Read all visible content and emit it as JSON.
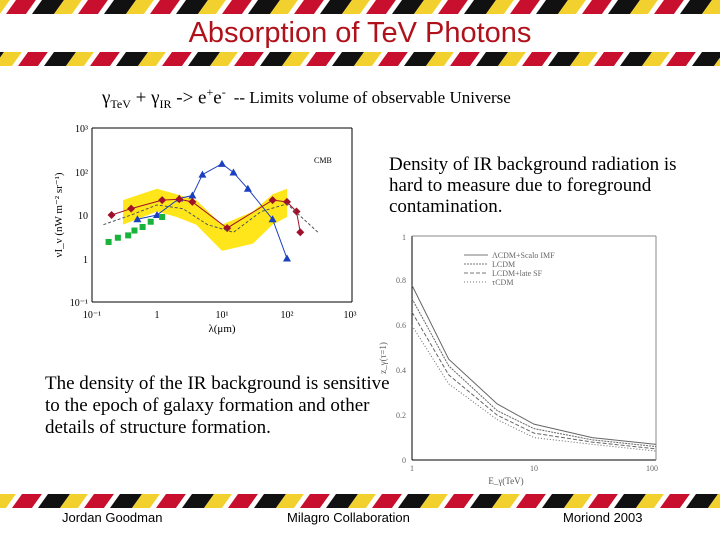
{
  "slide": {
    "title": "Absorption of TeV Photons",
    "reaction": {
      "g1": "γ",
      "s1": "TeV",
      "plus": " + γ",
      "s2": "IR",
      "arrow": " -> e",
      "p1": "+",
      "e2": "e",
      "p2": "-",
      "note": "-- Limits volume of observable Universe"
    },
    "density_note": "Density of IR background radiation is hard to measure due to foreground contamination.",
    "bottom_note": "The density of the IR background is sensitive to the epoch of galaxy formation and other details of structure formation.",
    "footer": {
      "left": "Jordan Goodman",
      "center": "Milagro Collaboration",
      "right": "Moriond 2003"
    }
  },
  "colors": {
    "title": "#b0121b",
    "band_black": "#111111",
    "band_yellow": "#f2d12e",
    "band_red": "#c8102e",
    "band_white": "#ffffff"
  },
  "chart_data": [
    {
      "type": "scatter",
      "title": "",
      "xlabel": "λ(μm)",
      "ylabel": "νI_ν (nW m⁻² sr⁻¹)",
      "x_scale": "log",
      "y_scale": "log",
      "xlim": [
        0.1,
        1000
      ],
      "ylim": [
        0.1,
        1000
      ],
      "x_ticks": [
        "10⁻¹",
        "1",
        "10¹",
        "10²",
        "10³"
      ],
      "y_ticks": [
        "10³",
        "10²",
        "10",
        "1",
        "10⁻¹"
      ],
      "annotations": [
        "CMB"
      ],
      "series": [
        {
          "name": "allowed band upper",
          "x": [
            0.3,
            1,
            2,
            4,
            10,
            30,
            60,
            100
          ],
          "values": [
            22,
            40,
            30,
            22,
            6,
            12,
            30,
            40
          ]
        },
        {
          "name": "allowed band lower",
          "x": [
            0.3,
            1,
            2,
            4,
            10,
            30,
            60,
            100
          ],
          "values": [
            6,
            12,
            9,
            6,
            1.5,
            2.2,
            6,
            9
          ]
        },
        {
          "name": "upper limits (blue)",
          "x": [
            0.5,
            1,
            2.2,
            3.5,
            5,
            10,
            15,
            25,
            60,
            100
          ],
          "values": [
            8,
            10,
            24,
            28,
            85,
            150,
            95,
            40,
            8,
            1
          ]
        },
        {
          "name": "direct estimates (red)",
          "x": [
            0.2,
            0.4,
            1.2,
            2.2,
            3.5,
            12,
            60,
            100,
            140,
            160
          ],
          "values": [
            10,
            14,
            22,
            23,
            20,
            5,
            22,
            20,
            12,
            4
          ]
        },
        {
          "name": "galaxy counts (green)",
          "x": [
            0.18,
            0.25,
            0.36,
            0.45,
            0.6,
            0.8,
            1.2
          ],
          "values": [
            2.4,
            3,
            3.4,
            4.4,
            5.3,
            7,
            9
          ]
        },
        {
          "name": "model curve",
          "x": [
            0.15,
            0.4,
            1,
            2.5,
            6,
            15,
            40,
            100,
            300
          ],
          "values": [
            6,
            10,
            17,
            14,
            6,
            4,
            12,
            18,
            4
          ]
        }
      ]
    },
    {
      "type": "line",
      "title": "",
      "xlabel": "E_γ(TeV)",
      "ylabel": "z_γ(τ=1)",
      "xlim": [
        1,
        100
      ],
      "ylim": [
        0,
        1
      ],
      "x_ticks": [
        "1",
        "10",
        "100"
      ],
      "y_ticks": [
        "0",
        "0.2",
        "0.4",
        "0.6",
        "0.8",
        "1"
      ],
      "series": [
        {
          "name": "ΛCDM+Scalo IMF",
          "x": [
            1,
            2,
            5,
            10,
            30,
            100
          ],
          "values": [
            0.78,
            0.45,
            0.25,
            0.16,
            0.1,
            0.07
          ]
        },
        {
          "name": "LCDM",
          "x": [
            1,
            2,
            5,
            10,
            30,
            100
          ],
          "values": [
            0.72,
            0.42,
            0.22,
            0.14,
            0.09,
            0.06
          ]
        },
        {
          "name": "LCDM+late SF",
          "x": [
            1,
            2,
            5,
            10,
            30,
            100
          ],
          "values": [
            0.66,
            0.38,
            0.2,
            0.12,
            0.08,
            0.05
          ]
        },
        {
          "name": "τCDM",
          "x": [
            1,
            2,
            5,
            10,
            30,
            100
          ],
          "values": [
            0.6,
            0.34,
            0.18,
            0.1,
            0.07,
            0.04
          ]
        }
      ]
    }
  ]
}
